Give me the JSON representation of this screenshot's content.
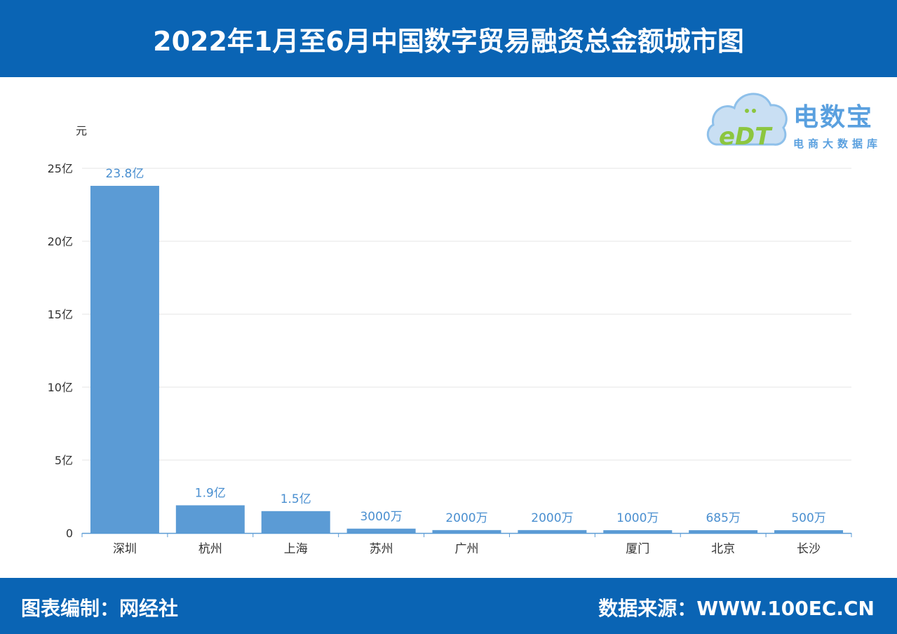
{
  "header": {
    "title": "2022年1月至6月中国数字贸易融资总金额城市图"
  },
  "footer": {
    "left": "图表编制：网经社",
    "right": "数据来源：WWW.100EC.CN"
  },
  "logo": {
    "brand": "电数宝",
    "subtitle": "电商大数据库",
    "mark": "eDT"
  },
  "colors": {
    "header_bg": "#0a64b4",
    "bar": "#5b9bd5",
    "label": "#4a8fd0",
    "axis": "#5b9bd5",
    "grid": "#e6e6e6"
  },
  "chart_data": {
    "type": "bar",
    "ylabel": "元",
    "ylim": [
      0,
      2500000000
    ],
    "y_ticks": [
      {
        "value": 0,
        "label": "0"
      },
      {
        "value": 500000000,
        "label": "5亿"
      },
      {
        "value": 1000000000,
        "label": "10亿"
      },
      {
        "value": 1500000000,
        "label": "15亿"
      },
      {
        "value": 2000000000,
        "label": "20亿"
      },
      {
        "value": 2500000000,
        "label": "25亿"
      }
    ],
    "categories": [
      "深圳",
      "杭州",
      "上海",
      "苏州",
      "广州",
      "",
      "厦门",
      "北京",
      "长沙"
    ],
    "values": [
      2380000000,
      190000000,
      150000000,
      30000000,
      20000000,
      20000000,
      10000000,
      6850000,
      5000000
    ],
    "data_labels": [
      "23.8亿",
      "1.9亿",
      "1.5亿",
      "3000万",
      "2000万",
      "2000万",
      "1000万",
      "685万",
      "500万"
    ],
    "grid": true
  }
}
